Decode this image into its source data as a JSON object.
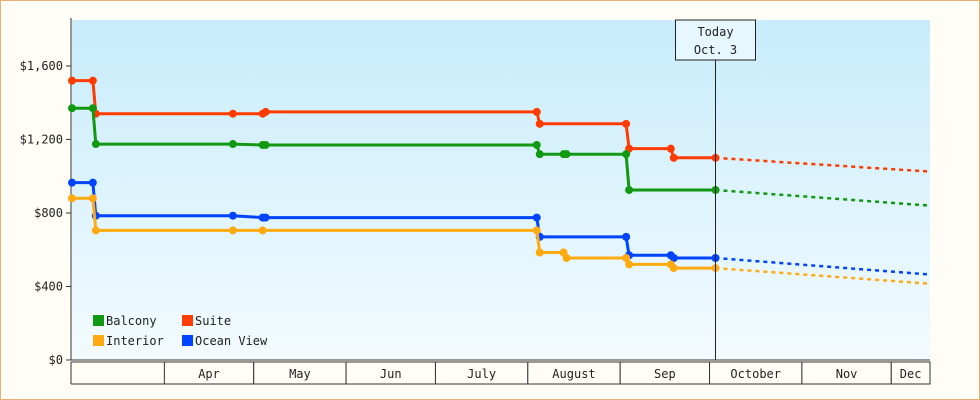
{
  "chart_data": {
    "type": "line",
    "ylim": [
      0,
      1850
    ],
    "y_ticks": [
      {
        "value": 0,
        "label": "$0"
      },
      {
        "value": 400,
        "label": "$400"
      },
      {
        "value": 800,
        "label": "$800"
      },
      {
        "value": 1200,
        "label": "$1,200"
      },
      {
        "value": 1600,
        "label": "$1,600"
      }
    ],
    "x_axis": {
      "start": "2024-03-01",
      "end": "2024-12-14",
      "months": [
        {
          "label": "Apr",
          "start": "2024-04-01",
          "end": "2024-05-01"
        },
        {
          "label": "May",
          "start": "2024-05-01",
          "end": "2024-06-01"
        },
        {
          "label": "Jun",
          "start": "2024-06-01",
          "end": "2024-07-01"
        },
        {
          "label": "July",
          "start": "2024-07-01",
          "end": "2024-08-01"
        },
        {
          "label": "August",
          "start": "2024-08-01",
          "end": "2024-09-01"
        },
        {
          "label": "Sep",
          "start": "2024-09-01",
          "end": "2024-10-01"
        },
        {
          "label": "October",
          "start": "2024-10-01",
          "end": "2024-11-01"
        },
        {
          "label": "Nov",
          "start": "2024-11-01",
          "end": "2024-12-01"
        },
        {
          "label": "Dec",
          "start": "2024-12-01",
          "end": "2024-12-14"
        }
      ]
    },
    "today": {
      "line1": "Today",
      "line2": "Oct. 3",
      "date": "2024-10-03"
    },
    "legend": "bottom-left",
    "series": [
      {
        "name": "Suite",
        "color": "#ff3c00",
        "points": [
          [
            "2024-03-01",
            1520
          ],
          [
            "2024-03-08",
            1520
          ],
          [
            "2024-03-09",
            1340
          ],
          [
            "2024-04-24",
            1340
          ],
          [
            "2024-05-04",
            1340
          ],
          [
            "2024-05-05",
            1350
          ],
          [
            "2024-08-04",
            1350
          ],
          [
            "2024-08-05",
            1285
          ],
          [
            "2024-09-03",
            1285
          ],
          [
            "2024-09-04",
            1150
          ],
          [
            "2024-09-18",
            1150
          ],
          [
            "2024-09-19",
            1100
          ],
          [
            "2024-10-03",
            1100
          ]
        ],
        "forecast": [
          [
            "2024-10-03",
            1100
          ],
          [
            "2024-12-14",
            1025
          ]
        ]
      },
      {
        "name": "Balcony",
        "color": "#119911",
        "points": [
          [
            "2024-03-01",
            1370
          ],
          [
            "2024-03-08",
            1370
          ],
          [
            "2024-03-09",
            1175
          ],
          [
            "2024-04-24",
            1175
          ],
          [
            "2024-05-04",
            1170
          ],
          [
            "2024-05-05",
            1170
          ],
          [
            "2024-08-04",
            1170
          ],
          [
            "2024-08-05",
            1120
          ],
          [
            "2024-08-13",
            1120
          ],
          [
            "2024-08-14",
            1120
          ],
          [
            "2024-09-03",
            1120
          ],
          [
            "2024-09-04",
            925
          ],
          [
            "2024-10-03",
            925
          ]
        ],
        "forecast": [
          [
            "2024-10-03",
            925
          ],
          [
            "2024-12-14",
            840
          ]
        ]
      },
      {
        "name": "Ocean View",
        "color": "#0044ff",
        "points": [
          [
            "2024-03-01",
            965
          ],
          [
            "2024-03-08",
            965
          ],
          [
            "2024-03-09",
            785
          ],
          [
            "2024-04-24",
            785
          ],
          [
            "2024-05-04",
            775
          ],
          [
            "2024-05-05",
            775
          ],
          [
            "2024-08-04",
            775
          ],
          [
            "2024-08-05",
            670
          ],
          [
            "2024-09-03",
            670
          ],
          [
            "2024-09-04",
            570
          ],
          [
            "2024-09-18",
            570
          ],
          [
            "2024-09-19",
            555
          ],
          [
            "2024-10-03",
            555
          ]
        ],
        "forecast": [
          [
            "2024-10-03",
            555
          ],
          [
            "2024-12-14",
            465
          ]
        ]
      },
      {
        "name": "Interior",
        "color": "#ffaa11",
        "points": [
          [
            "2024-03-01",
            880
          ],
          [
            "2024-03-08",
            880
          ],
          [
            "2024-03-09",
            705
          ],
          [
            "2024-04-24",
            705
          ],
          [
            "2024-05-04",
            705
          ],
          [
            "2024-08-04",
            705
          ],
          [
            "2024-08-05",
            585
          ],
          [
            "2024-08-13",
            585
          ],
          [
            "2024-08-14",
            555
          ],
          [
            "2024-09-03",
            555
          ],
          [
            "2024-09-04",
            520
          ],
          [
            "2024-09-18",
            520
          ],
          [
            "2024-09-19",
            500
          ],
          [
            "2024-10-03",
            500
          ]
        ],
        "forecast": [
          [
            "2024-10-03",
            500
          ],
          [
            "2024-12-14",
            415
          ]
        ]
      }
    ],
    "legend_order": [
      "Balcony",
      "Suite",
      "Interior",
      "Ocean View"
    ]
  }
}
